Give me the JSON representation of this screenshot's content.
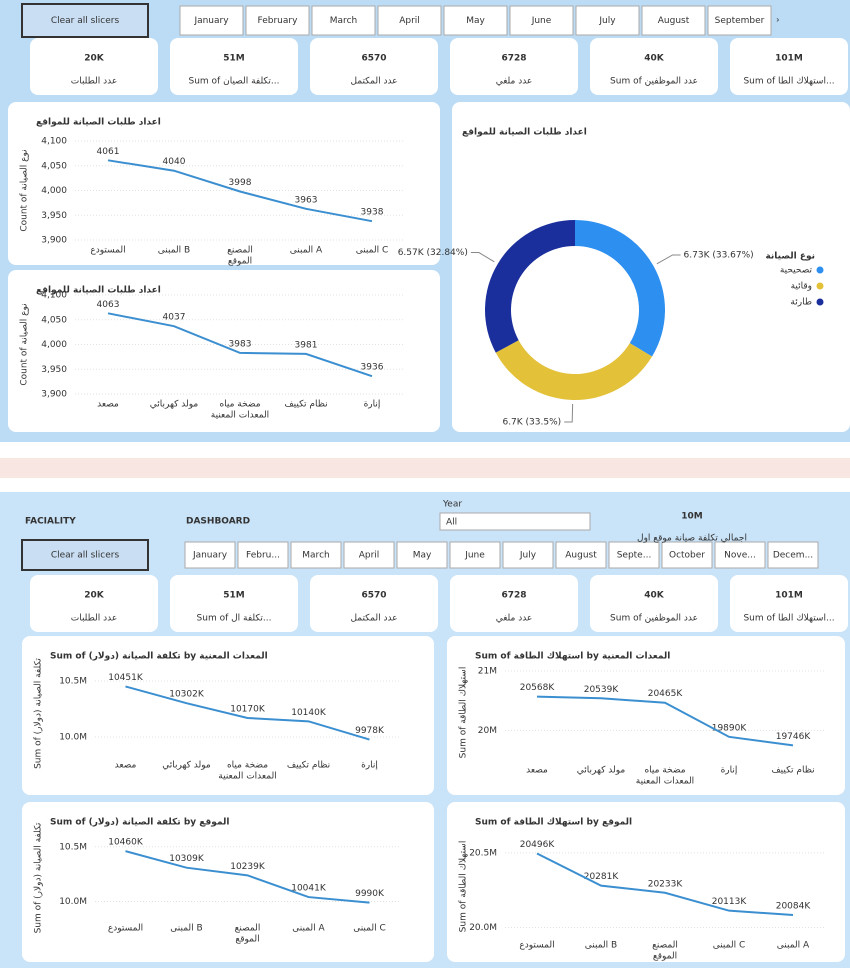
{
  "top": {
    "clear_button": "Clear all slicers",
    "months": [
      "January",
      "February",
      "March",
      "April",
      "May",
      "June",
      "July",
      "August",
      "September"
    ],
    "kpis": [
      {
        "value": "20K",
        "label": "عدد الطلبات"
      },
      {
        "value": "51M",
        "label": "Sum of تكلفة الصيان..."
      },
      {
        "value": "6570",
        "label": "عدد المكتمل"
      },
      {
        "value": "6728",
        "label": "عدد ملغي"
      },
      {
        "value": "40K",
        "label": "Sum of عدد الموظفين"
      },
      {
        "value": "101M",
        "label": "Sum of استهلاك الطا..."
      }
    ]
  },
  "bottom": {
    "title_part1": "FACIALITY",
    "title_part2": "DASHBOARD",
    "year_label": "Year",
    "year_value": "All",
    "card_value": "10M",
    "card_label": "اجمالي تكلفة صيانة موقع اول",
    "clear_button": "Clear all slicers",
    "months": [
      "January",
      "Febru...",
      "March",
      "April",
      "May",
      "June",
      "July",
      "August",
      "Septe...",
      "October",
      "Nove...",
      "Decem..."
    ],
    "kpis": [
      {
        "value": "20K",
        "label": "عدد الطلبات"
      },
      {
        "value": "51M",
        "label": "Sum of تكلفة ال..."
      },
      {
        "value": "6570",
        "label": "عدد المكتمل"
      },
      {
        "value": "6728",
        "label": "عدد ملغي"
      },
      {
        "value": "40K",
        "label": "Sum of عدد الموظفين"
      },
      {
        "value": "101M",
        "label": "Sum of استهلاك الطا..."
      }
    ]
  },
  "chart_data": [
    {
      "type": "line",
      "title": "اعداد طلبات الصيانة للمواقع",
      "y_label": "Count of نوع الصيانة",
      "x_label": "الموقع",
      "categories": [
        "المستودع",
        "المبنى B",
        "المصنع",
        "المبنى A",
        "المبنى C"
      ],
      "values": [
        4061,
        4040,
        3998,
        3963,
        3938
      ],
      "color": "#3b8fd0",
      "ylim": [
        3900,
        4100
      ],
      "yticks": [
        {
          "value": 3900,
          "label": "3,900"
        },
        {
          "value": 3950,
          "label": "3,950"
        },
        {
          "value": 4000,
          "label": "4,000"
        },
        {
          "value": 4050,
          "label": "4,050"
        },
        {
          "value": 4100,
          "label": "4,100"
        }
      ],
      "grid": true
    },
    {
      "type": "line",
      "title": "اعداد طلبات الصيانة للمواقع",
      "y_label": "Count of نوع الصيانة",
      "x_label": "المعدات المعنية",
      "categories": [
        "مصعد",
        "مولد كهربائي",
        "مضخة مياه",
        "نظام تكييف",
        "إنارة"
      ],
      "values": [
        4063,
        4037,
        3983,
        3981,
        3936
      ],
      "color": "#3b8fd0",
      "ylim": [
        3900,
        4100
      ],
      "yticks": [
        {
          "value": 3900,
          "label": "3,900"
        },
        {
          "value": 3950,
          "label": "3,950"
        },
        {
          "value": 4000,
          "label": "4,000"
        },
        {
          "value": 4050,
          "label": "4,050"
        },
        {
          "value": 4100,
          "label": "4,100"
        }
      ],
      "grid": true
    },
    {
      "type": "pie",
      "title": "اعداد طلبات الصيانة للمواقع",
      "legend_title": "نوع الصيانة",
      "categories": [
        "تصحيحية",
        "وقائية",
        "طارئة"
      ],
      "values": [
        6730,
        6700,
        6570
      ],
      "value_labels": [
        "6.73K (33.67%)",
        "6.7K (33.5%)",
        "6.57K (32.84%)"
      ],
      "colors": [
        "#2d8ff0",
        "#e3c139",
        "#1b2f9c"
      ],
      "donut": true
    },
    {
      "type": "line",
      "title": "Sum of تكلفة الصيانة (دولار) by المعدات المعنية",
      "y_label": "Sum of تكلفة الصيانة (دولار)",
      "x_label": "المعدات المعنية",
      "categories": [
        "مصعد",
        "مولد كهربائي",
        "مضخة مياه",
        "نظام تكييف",
        "إنارة"
      ],
      "values": [
        10451000,
        10302000,
        10170000,
        10140000,
        9978000
      ],
      "value_labels": [
        "10451K",
        "10302K",
        "10170K",
        "10140K",
        "9978K"
      ],
      "color": "#3b8fd0",
      "ylim": [
        9840000,
        10580000
      ],
      "yticks": [
        {
          "value": 10000000,
          "label": "10.0M"
        },
        {
          "value": 10500000,
          "label": "10.5M"
        }
      ],
      "grid": true
    },
    {
      "type": "line",
      "title": "Sum of استهلاك الطاقة by المعدات المعنية",
      "y_label": "Sum of استهلاك الطاقة",
      "x_label": "المعدات المعنية",
      "categories": [
        "مصعد",
        "مولد كهربائي",
        "مضخة مياه",
        "إنارة",
        "نظام تكييف"
      ],
      "values": [
        20568000,
        20539000,
        20465000,
        19890000,
        19746000
      ],
      "value_labels": [
        "20568K",
        "20539K",
        "20465K",
        "19890K",
        "19746K"
      ],
      "color": "#3b8fd0",
      "ylim": [
        19500000,
        21100000
      ],
      "yticks": [
        {
          "value": 20000000,
          "label": "20M"
        },
        {
          "value": 21000000,
          "label": "21M"
        }
      ],
      "grid": true
    },
    {
      "type": "line",
      "title": "Sum of تكلفة الصيانة (دولار) by الموقع",
      "y_label": "Sum of تكلفة الصيانة (دولار)",
      "x_label": "الموقع",
      "categories": [
        "المستودع",
        "المبنى B",
        "المصنع",
        "المبنى A",
        "المبنى C"
      ],
      "values": [
        10460000,
        10309000,
        10239000,
        10041000,
        9990000
      ],
      "value_labels": [
        "10460K",
        "10309K",
        "10239K",
        "10041K",
        "9990K"
      ],
      "color": "#3b8fd0",
      "ylim": [
        9850000,
        10580000
      ],
      "yticks": [
        {
          "value": 10000000,
          "label": "10.0M"
        },
        {
          "value": 10500000,
          "label": "10.5M"
        }
      ],
      "grid": true
    },
    {
      "type": "line",
      "title": "Sum of استهلاك الطاقة by الموقع",
      "y_label": "Sum of استهلاك الطاقة",
      "x_label": "الموقع",
      "categories": [
        "المستودع",
        "المبنى B",
        "المصنع",
        "المبنى C",
        "المبنى A"
      ],
      "values": [
        20496000,
        20281000,
        20233000,
        20113000,
        20084000
      ],
      "value_labels": [
        "20496K",
        "20281K",
        "20233K",
        "20113K",
        "20084K"
      ],
      "color": "#3b8fd0",
      "ylim": [
        19950000,
        20600000
      ],
      "yticks": [
        {
          "value": 20000000,
          "label": "20.0M"
        },
        {
          "value": 20500000,
          "label": "20.5M"
        }
      ],
      "grid": true
    }
  ]
}
